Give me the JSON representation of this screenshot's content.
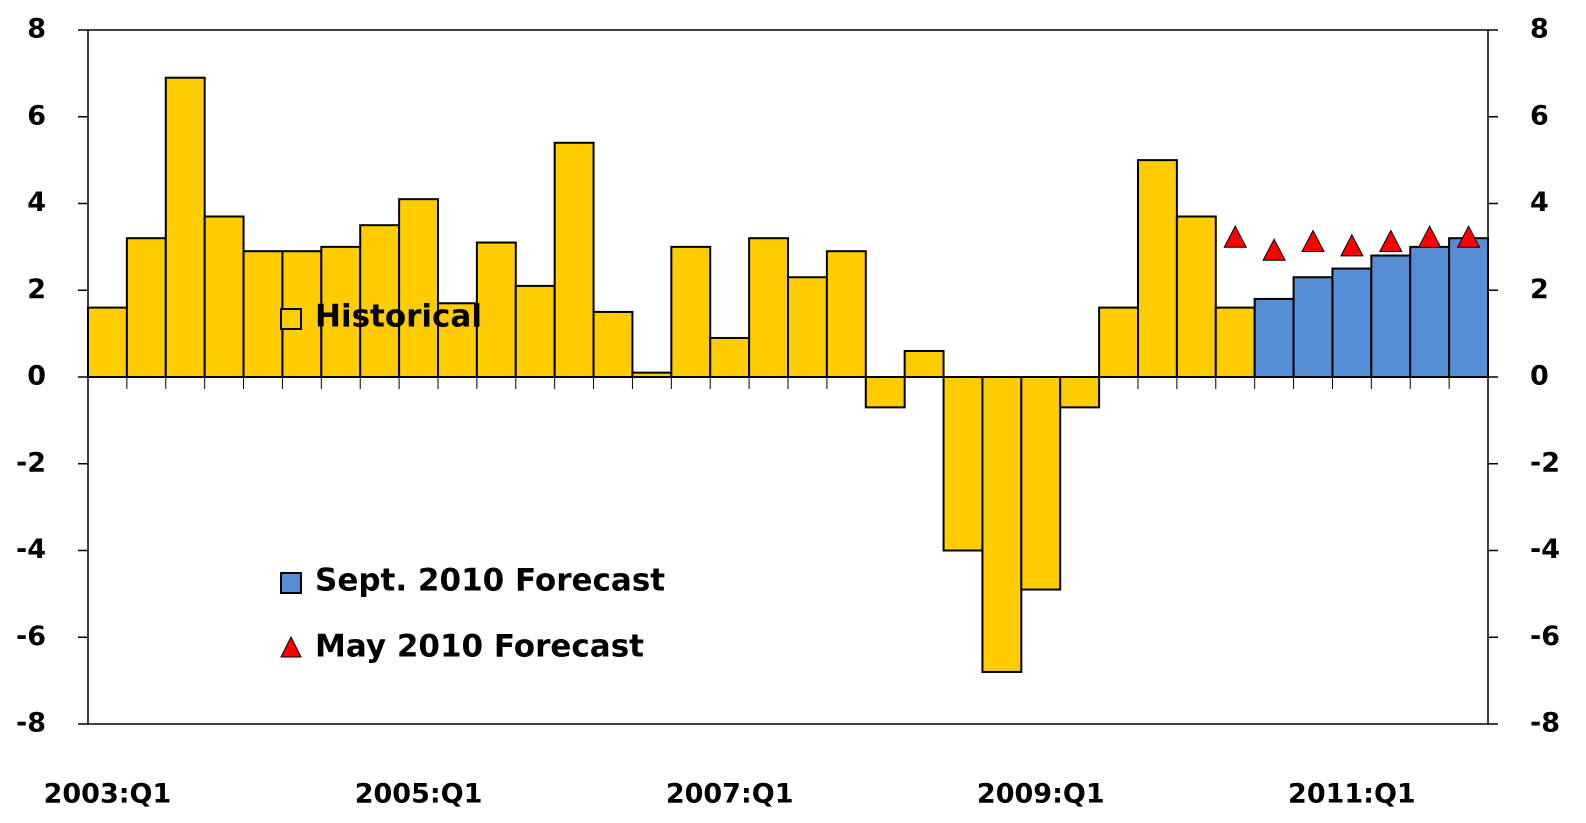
{
  "chart_data": {
    "type": "bar",
    "categories": [
      "2003:Q1",
      null,
      null,
      null,
      null,
      null,
      null,
      null,
      "2005:Q1",
      null,
      null,
      null,
      null,
      null,
      null,
      null,
      "2007:Q1",
      null,
      null,
      null,
      null,
      null,
      null,
      null,
      "2009:Q1",
      null,
      null,
      null,
      null,
      null,
      null,
      null,
      "2011:Q1",
      null,
      null,
      null
    ],
    "series": [
      {
        "name": "Historical",
        "color": "#ffcc00",
        "marker": "bar",
        "values": [
          1.6,
          3.2,
          6.9,
          3.7,
          2.9,
          2.9,
          3.0,
          3.5,
          4.1,
          1.7,
          3.1,
          2.1,
          5.4,
          1.5,
          0.1,
          3.0,
          0.9,
          3.2,
          2.3,
          2.9,
          -0.7,
          0.6,
          -4.0,
          -6.8,
          -4.9,
          -0.7,
          1.6,
          5.0,
          3.7,
          1.6,
          null,
          null,
          null,
          null,
          null,
          null
        ]
      },
      {
        "name": "Sept. 2010 Forecast",
        "color": "#558ed5",
        "marker": "bar",
        "values": [
          null,
          null,
          null,
          null,
          null,
          null,
          null,
          null,
          null,
          null,
          null,
          null,
          null,
          null,
          null,
          null,
          null,
          null,
          null,
          null,
          null,
          null,
          null,
          null,
          null,
          null,
          null,
          null,
          null,
          null,
          1.8,
          2.3,
          2.5,
          2.8,
          3.0,
          3.2
        ]
      },
      {
        "name": "May 2010 Forecast",
        "color": "#ff0000",
        "marker": "triangle",
        "values": [
          null,
          null,
          null,
          null,
          null,
          null,
          null,
          null,
          null,
          null,
          null,
          null,
          null,
          null,
          null,
          null,
          null,
          null,
          null,
          null,
          null,
          null,
          null,
          null,
          null,
          null,
          null,
          null,
          null,
          3.2,
          2.9,
          3.1,
          3.0,
          3.1,
          3.2,
          3.2
        ]
      }
    ],
    "ylim": [
      -8,
      8
    ],
    "yticks": [
      -8,
      -6,
      -4,
      -2,
      0,
      2,
      4,
      6,
      8
    ]
  }
}
